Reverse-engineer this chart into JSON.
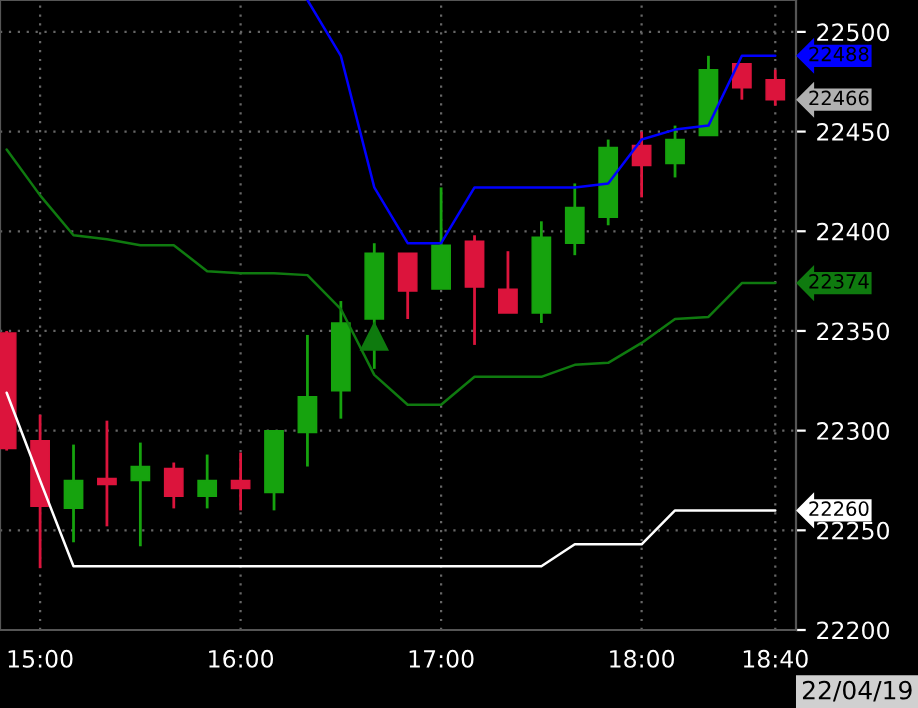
{
  "chart_data": {
    "type": "candlestick",
    "x": [
      14.8333,
      15.0,
      15.1667,
      15.3333,
      15.5,
      15.6667,
      15.8333,
      16.0,
      16.1667,
      16.3333,
      16.5,
      16.6667,
      16.8333,
      17.0,
      17.1667,
      17.3333,
      17.5,
      17.6667,
      17.8333,
      18.0,
      18.1667,
      18.3333,
      18.5,
      18.6667
    ],
    "ohlc": [
      [
        22349,
        22350,
        22290,
        22291
      ],
      [
        22295,
        22308,
        22231,
        22262
      ],
      [
        22261,
        22293,
        22244,
        22275
      ],
      [
        22276,
        22305,
        22252,
        22273
      ],
      [
        22275,
        22294,
        22242,
        22282
      ],
      [
        22281,
        22284,
        22261,
        22267
      ],
      [
        22267,
        22288,
        22261,
        22275
      ],
      [
        22275,
        22289,
        22260,
        22271
      ],
      [
        22269,
        22300,
        22260,
        22300
      ],
      [
        22299,
        22348,
        22282,
        22317
      ],
      [
        22320,
        22365,
        22306,
        22354
      ],
      [
        22356,
        22394,
        22331,
        22389
      ],
      [
        22389,
        22389,
        22356,
        22370
      ],
      [
        22371,
        22422,
        22371,
        22393
      ],
      [
        22395,
        22398,
        22343,
        22372
      ],
      [
        22371,
        22390,
        22359,
        22359
      ],
      [
        22359,
        22405,
        22354,
        22397
      ],
      [
        22394,
        22424,
        22388,
        22412
      ],
      [
        22407,
        22446,
        22403,
        22442
      ],
      [
        22443,
        22450,
        22417,
        22433
      ],
      [
        22434,
        22453,
        22427,
        22446
      ],
      [
        22448,
        22488,
        22448,
        22481
      ],
      [
        22484,
        22484,
        22466,
        22472
      ],
      [
        22476,
        22481,
        22463,
        22466
      ]
    ],
    "colors": [
      "#dc143c",
      "#dc143c",
      "#16a30e",
      "#dc143c",
      "#16a30e",
      "#dc143c",
      "#16a30e",
      "#dc143c",
      "#16a30e",
      "#16a30e",
      "#16a30e",
      "#16a30e",
      "#dc143c",
      "#16a30e",
      "#dc143c",
      "#dc143c",
      "#16a30e",
      "#16a30e",
      "#16a30e",
      "#dc143c",
      "#16a30e",
      "#16a30e",
      "#dc143c",
      "#dc143c"
    ],
    "series": [
      {
        "type": "line",
        "color": "#0000ff",
        "x": [
          16.3333,
          16.5,
          16.6667,
          16.8333,
          17.0,
          17.1667,
          17.3333,
          17.5,
          17.6667,
          17.8333,
          18.0,
          18.1667,
          18.3333,
          18.5,
          18.6667
        ],
        "values": [
          22516,
          22488,
          22422,
          22394,
          22394,
          22422,
          22422,
          22422,
          22422,
          22424,
          22446,
          22451,
          22453,
          22488,
          22488
        ]
      },
      {
        "type": "line",
        "color": "#0f7a0f",
        "x": [
          14.8333,
          15.0,
          15.1667,
          15.3333,
          15.5,
          15.6667,
          15.8333,
          16.0,
          16.1667,
          16.3333,
          16.5,
          16.6667,
          16.8333,
          17.0,
          17.1667,
          17.3333,
          17.5,
          17.6667,
          17.8333,
          18.0,
          18.1667,
          18.3333,
          18.5,
          18.6667
        ],
        "values": [
          22441,
          22418,
          22398,
          22396,
          22393,
          22393,
          22380,
          22379,
          22379,
          22378,
          22361,
          22328,
          22313,
          22313,
          22327,
          22327,
          22327,
          22333,
          22334,
          22344,
          22356,
          22357,
          22374,
          22374
        ]
      },
      {
        "type": "line",
        "color": "#ffffff",
        "x": [
          14.8333,
          15.0,
          15.1667,
          15.3333,
          15.5,
          15.6667,
          15.8333,
          16.0,
          16.1667,
          16.3333,
          16.5,
          16.6667,
          16.8333,
          17.0,
          17.1667,
          17.3333,
          17.5,
          17.6667,
          17.8333,
          18.0,
          18.1667,
          18.3333,
          18.5,
          18.6667
        ],
        "values": [
          22319,
          22275,
          22232,
          22232,
          22232,
          22232,
          22232,
          22232,
          22232,
          22232,
          22232,
          22232,
          22232,
          22232,
          22232,
          22232,
          22232,
          22243,
          22243,
          22243,
          22260,
          22260,
          22260,
          22260
        ]
      },
      {
        "type": "scatter",
        "marker": "triangle",
        "color": "#0e7a0e",
        "x": [
          16.6667
        ],
        "values": [
          22347
        ]
      }
    ],
    "xlim": [
      14.8,
      18.77
    ],
    "xticks": [
      {
        "value": 15,
        "label": "15:00"
      },
      {
        "value": 16,
        "label": "16:00"
      },
      {
        "value": 17,
        "label": "17:00"
      },
      {
        "value": 18,
        "label": "18:00"
      },
      {
        "value": 18.6667,
        "label": "18:40"
      }
    ],
    "ylim": [
      22200,
      22516
    ],
    "yticks": [
      22200,
      22250,
      22300,
      22350,
      22400,
      22450,
      22500
    ],
    "grid": true,
    "annotations": [
      "22488",
      "22374",
      "22260",
      "22466",
      "22/04/19"
    ]
  }
}
